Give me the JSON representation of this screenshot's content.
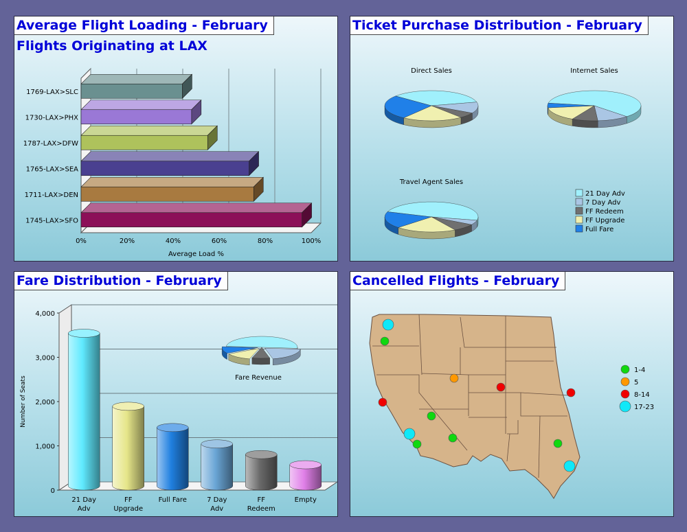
{
  "panels": {
    "loading": {
      "title": "Average Flight Loading - February",
      "subtitle": "Flights Originating at LAX"
    },
    "tickets": {
      "title": "Ticket Purchase Distribution - February"
    },
    "fares": {
      "title": "Fare Distribution - February"
    },
    "cancelled": {
      "title": "Cancelled Flights - February"
    }
  },
  "chart_data": [
    {
      "type": "bar",
      "orientation": "horizontal",
      "title": "Average Flight Loading - February",
      "subtitle": "Flights Originating at LAX",
      "xlabel": "Average Load %",
      "xlim": [
        0,
        100
      ],
      "xticks": [
        "0%",
        "20%",
        "40%",
        "60%",
        "80%",
        "100%"
      ],
      "categories": [
        "1769-LAX>SLC",
        "1730-LAX>PHX",
        "1787-LAX>DFW",
        "1765-LAX>SEA",
        "1711-LAX>DEN",
        "1745-LAX>SFO"
      ],
      "values": [
        44,
        48,
        55,
        73,
        75,
        96
      ],
      "colors": [
        "#6a9090",
        "#9a78d6",
        "#aec25c",
        "#4a4090",
        "#a87a40",
        "#8c1058"
      ]
    },
    {
      "type": "pie",
      "title": "Ticket Purchase Distribution - February",
      "legend": [
        "21 Day Adv",
        "7 Day Adv",
        "FF Redeem",
        "FF Upgrade",
        "Full Fare"
      ],
      "colors": [
        "#a0f0fc",
        "#aac6e4",
        "#707070",
        "#f0f0b0",
        "#2080e8"
      ],
      "pies": [
        {
          "name": "Direct Sales",
          "values": [
            35,
            12,
            6,
            21,
            26
          ]
        },
        {
          "name": "Internet Sales",
          "values": [
            60,
            11,
            9,
            15,
            5
          ]
        },
        {
          "name": "Travel Agent Sales",
          "values": [
            48,
            5,
            8,
            21,
            18
          ]
        }
      ]
    },
    {
      "type": "bar",
      "title": "Fare Distribution - February",
      "ylabel": "Number of Seats",
      "ylim": [
        0,
        4000
      ],
      "yticks": [
        "0",
        "1,000",
        "2,000",
        "3,000",
        "4,000"
      ],
      "categories": [
        "21 Day|Adv",
        "FF|Upgrade",
        "Full Fare",
        "7 Day|Adv",
        "FF|Redeem",
        "Empty"
      ],
      "values": [
        3450,
        1800,
        1320,
        950,
        710,
        480
      ],
      "colors": [
        "#60eaff",
        "#e6e68a",
        "#2080e0",
        "#6aa6d6",
        "#6a6a6a",
        "#e080e8"
      ],
      "inset_pie": {
        "name": "Fare Revenue",
        "values": [
          50,
          20,
          8,
          12,
          10
        ],
        "colors": [
          "#a0f0fc",
          "#aac6e4",
          "#707070",
          "#f0f0b0",
          "#2080e8"
        ]
      }
    },
    {
      "type": "map",
      "title": "Cancelled Flights - February",
      "legend": [
        {
          "label": "1-4",
          "color": "#10d810"
        },
        {
          "label": "5",
          "color": "#ff9800"
        },
        {
          "label": "8-14",
          "color": "#f00000"
        },
        {
          "label": "17-23",
          "color": "#10e8f8"
        }
      ]
    }
  ]
}
